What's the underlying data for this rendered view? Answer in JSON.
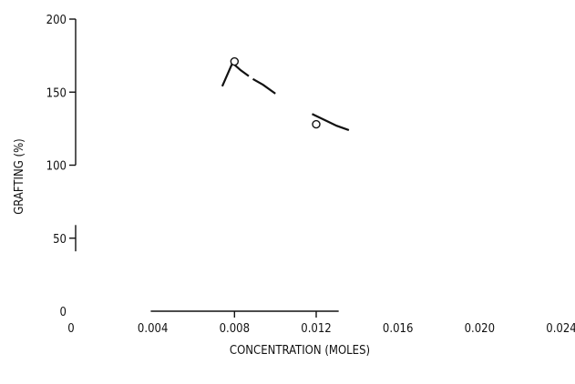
{
  "chart_data": {
    "type": "line",
    "title": "",
    "xlabel": "CONCENTRATION (MOLES)",
    "ylabel": "GRAFTING (%)",
    "xlim": [
      0,
      0.024
    ],
    "ylim": [
      0,
      200
    ],
    "x_ticks": [
      0,
      0.004,
      0.008,
      0.012,
      0.016,
      0.02,
      0.024
    ],
    "x_tick_labels": [
      "0",
      "0.004",
      "0.008",
      "0.012",
      "0.016",
      "0.020",
      "0.024"
    ],
    "y_ticks": [
      0,
      50,
      100,
      150,
      200
    ],
    "y_tick_labels": [
      "0",
      "50",
      "100",
      "150",
      "200"
    ],
    "grid": false,
    "legend": "none",
    "series": [
      {
        "kind": "curve",
        "segments": [
          [
            [
              0.0074,
              154
            ],
            [
              0.0079,
              170
            ],
            [
              0.0083,
              165
            ],
            [
              0.0087,
              161
            ]
          ],
          [
            [
              0.0089,
              159
            ],
            [
              0.0094,
              155
            ],
            [
              0.01,
              149
            ]
          ],
          [
            [
              0.0118,
              135
            ],
            [
              0.0124,
              131
            ],
            [
              0.013,
              127
            ],
            [
              0.0136,
              124
            ]
          ]
        ]
      },
      {
        "kind": "points",
        "x": [
          0.008,
          0.012
        ],
        "y": [
          171,
          128
        ]
      }
    ]
  }
}
